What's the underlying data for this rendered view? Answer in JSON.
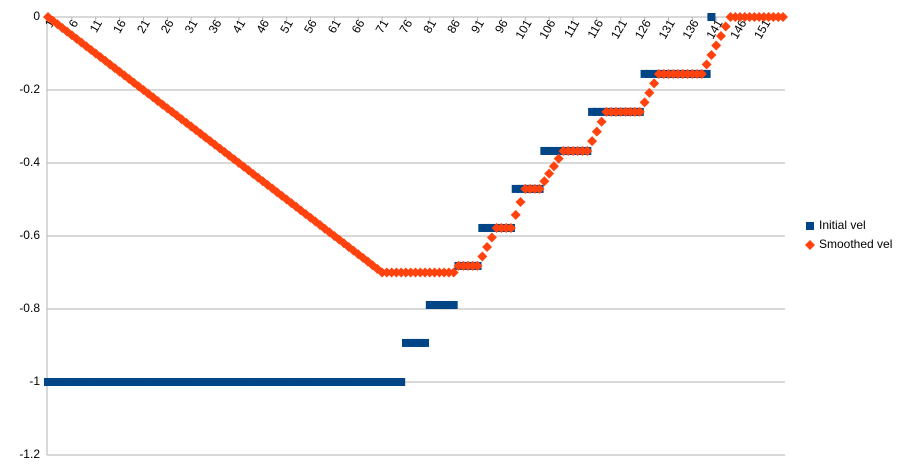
{
  "chart_data": {
    "type": "scatter-markers",
    "categories": [
      1,
      null,
      null,
      null,
      null,
      6,
      null,
      null,
      null,
      null,
      11,
      null,
      null,
      null,
      null,
      16,
      null,
      null,
      null,
      null,
      21,
      null,
      null,
      null,
      null,
      26,
      null,
      null,
      null,
      null,
      31,
      null,
      null,
      null,
      null,
      36,
      null,
      null,
      null,
      null,
      41,
      null,
      null,
      null,
      null,
      46,
      null,
      null,
      null,
      null,
      51,
      null,
      null,
      null,
      null,
      56,
      null,
      null,
      null,
      null,
      61,
      null,
      null,
      null,
      null,
      66,
      null,
      null,
      null,
      null,
      71,
      null,
      null,
      null,
      null,
      76,
      null,
      null,
      null,
      null,
      81,
      null,
      null,
      null,
      null,
      86,
      null,
      null,
      null,
      null,
      91,
      null,
      null,
      null,
      null,
      96,
      null,
      null,
      null,
      null,
      101,
      null,
      null,
      null,
      null,
      106,
      null,
      null,
      null,
      null,
      111,
      null,
      null,
      null,
      null,
      116,
      null,
      null,
      null,
      null,
      121,
      null,
      null,
      null,
      null,
      126,
      null,
      null,
      null,
      null,
      131,
      null,
      null,
      null,
      null,
      136,
      null,
      null,
      null,
      null,
      141,
      null,
      null,
      null,
      null,
      146,
      null,
      null,
      null,
      null,
      151,
      null,
      null,
      null,
      null
    ],
    "series": [
      {
        "name": "Initial vel",
        "color": "#004586",
        "marker": "square",
        "values": [
          -1,
          -1,
          -1,
          -1,
          -1,
          -1,
          -1,
          -1,
          -1,
          -1,
          -1,
          -1,
          -1,
          -1,
          -1,
          -1,
          -1,
          -1,
          -1,
          -1,
          -1,
          -1,
          -1,
          -1,
          -1,
          -1,
          -1,
          -1,
          -1,
          -1,
          -1,
          -1,
          -1,
          -1,
          -1,
          -1,
          -1,
          -1,
          -1,
          -1,
          -1,
          -1,
          -1,
          -1,
          -1,
          -1,
          -1,
          -1,
          -1,
          -1,
          -1,
          -1,
          -1,
          -1,
          -1,
          -1,
          -1,
          -1,
          -1,
          -1,
          -1,
          -1,
          -1,
          -1,
          -1,
          -1,
          -1,
          -1,
          -1,
          -1,
          -1,
          -1,
          -1,
          -1,
          -1,
          -0.893,
          -0.893,
          -0.893,
          -0.893,
          -0.893,
          -0.789,
          -0.789,
          -0.789,
          -0.789,
          -0.789,
          -0.789,
          -0.682,
          -0.682,
          -0.682,
          -0.682,
          -0.682,
          -0.578,
          -0.578,
          -0.578,
          -0.578,
          -0.578,
          -0.578,
          -0.578,
          -0.471,
          -0.471,
          -0.471,
          -0.471,
          -0.471,
          -0.471,
          -0.367,
          -0.367,
          -0.367,
          -0.367,
          -0.367,
          -0.367,
          -0.367,
          -0.367,
          -0.367,
          -0.367,
          -0.26,
          -0.26,
          -0.26,
          -0.26,
          -0.26,
          -0.26,
          -0.26,
          -0.26,
          -0.26,
          -0.26,
          -0.26,
          -0.156,
          -0.156,
          -0.156,
          -0.156,
          -0.156,
          -0.156,
          -0.156,
          -0.156,
          -0.156,
          -0.156,
          -0.156,
          -0.156,
          -0.156,
          -0.156,
          0,
          null,
          null,
          null,
          null,
          null,
          null,
          null,
          null,
          null,
          null,
          null,
          null,
          null,
          null,
          null
        ]
      },
      {
        "name": "Smoothed vel",
        "color": "#ff420e",
        "marker": "diamond",
        "values": [
          0,
          -0.01,
          -0.02,
          -0.03,
          -0.04,
          -0.05,
          -0.06,
          -0.07,
          -0.08,
          -0.09,
          -0.1,
          -0.11,
          -0.12,
          -0.13,
          -0.14,
          -0.15,
          -0.16,
          -0.17,
          -0.18,
          -0.19,
          -0.2,
          -0.21,
          -0.22,
          -0.23,
          -0.24,
          -0.25,
          -0.26,
          -0.27,
          -0.28,
          -0.29,
          -0.3,
          -0.31,
          -0.32,
          -0.33,
          -0.34,
          -0.35,
          -0.36,
          -0.37,
          -0.38,
          -0.39,
          -0.4,
          -0.41,
          -0.42,
          -0.43,
          -0.44,
          -0.45,
          -0.46,
          -0.47,
          -0.48,
          -0.49,
          -0.5,
          -0.51,
          -0.52,
          -0.53,
          -0.54,
          -0.55,
          -0.56,
          -0.57,
          -0.58,
          -0.59,
          -0.6,
          -0.61,
          -0.62,
          -0.63,
          -0.64,
          -0.65,
          -0.66,
          -0.67,
          -0.68,
          -0.69,
          -0.7,
          -0.7,
          -0.7,
          -0.7,
          -0.7,
          -0.7,
          -0.7,
          -0.7,
          -0.7,
          -0.7,
          -0.7,
          -0.7,
          -0.7,
          -0.7,
          -0.7,
          -0.7,
          -0.682,
          -0.682,
          -0.682,
          -0.682,
          -0.682,
          -0.656,
          -0.63,
          -0.604,
          -0.578,
          -0.578,
          -0.578,
          -0.578,
          -0.542,
          -0.507,
          -0.471,
          -0.471,
          -0.471,
          -0.471,
          -0.45,
          -0.429,
          -0.409,
          -0.388,
          -0.367,
          -0.367,
          -0.367,
          -0.367,
          -0.367,
          -0.367,
          -0.34,
          -0.314,
          -0.287,
          -0.26,
          -0.26,
          -0.26,
          -0.26,
          -0.26,
          -0.26,
          -0.26,
          -0.26,
          -0.234,
          -0.208,
          -0.182,
          -0.156,
          -0.156,
          -0.156,
          -0.156,
          -0.156,
          -0.156,
          -0.156,
          -0.156,
          -0.156,
          -0.156,
          -0.13,
          -0.104,
          -0.078,
          -0.052,
          -0.026,
          0,
          0,
          0,
          0,
          0,
          0,
          0,
          0,
          0,
          0,
          0,
          0
        ]
      }
    ],
    "ylim": [
      -1.2,
      0
    ],
    "yticks": [
      0,
      -0.2,
      -0.4,
      -0.6,
      -0.8,
      -1,
      -1.2
    ],
    "grid": true,
    "legend": "right"
  }
}
